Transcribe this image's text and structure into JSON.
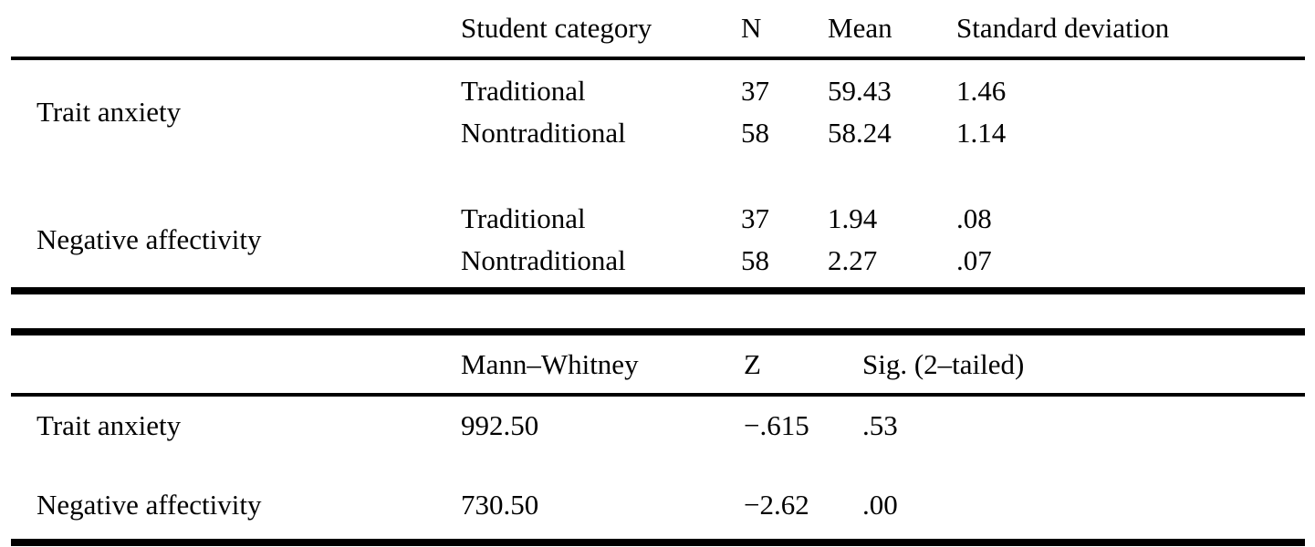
{
  "page": {
    "background": "#ffffff",
    "text_color": "#000000"
  },
  "descriptives_table": {
    "headers": {
      "category": "Student category",
      "n": "N",
      "mean": "Mean",
      "sd": "Standard deviation"
    },
    "row_groups": [
      {
        "label": "Trait anxiety",
        "rows": [
          {
            "category": "Traditional",
            "n": "37",
            "mean": "59.43",
            "sd": "1.46"
          },
          {
            "category": "Nontraditional",
            "n": "58",
            "mean": "58.24",
            "sd": "1.14"
          }
        ]
      },
      {
        "label": "Negative affectivity",
        "rows": [
          {
            "category": "Traditional",
            "n": "37",
            "mean": "1.94",
            "sd": ".08"
          },
          {
            "category": "Nontraditional",
            "n": "58",
            "mean": "2.27",
            "sd": ".07"
          }
        ]
      }
    ]
  },
  "test_table": {
    "headers": {
      "mann_whitney": "Mann–Whitney",
      "z": "Z",
      "sig": "Sig. (2–tailed)"
    },
    "rows": [
      {
        "label": "Trait anxiety",
        "mann_whitney": "992.50",
        "z": "−.615",
        "sig": ".53"
      },
      {
        "label": "Negative affectivity",
        "mann_whitney": "730.50",
        "z": "−2.62",
        "sig": ".00"
      }
    ]
  }
}
